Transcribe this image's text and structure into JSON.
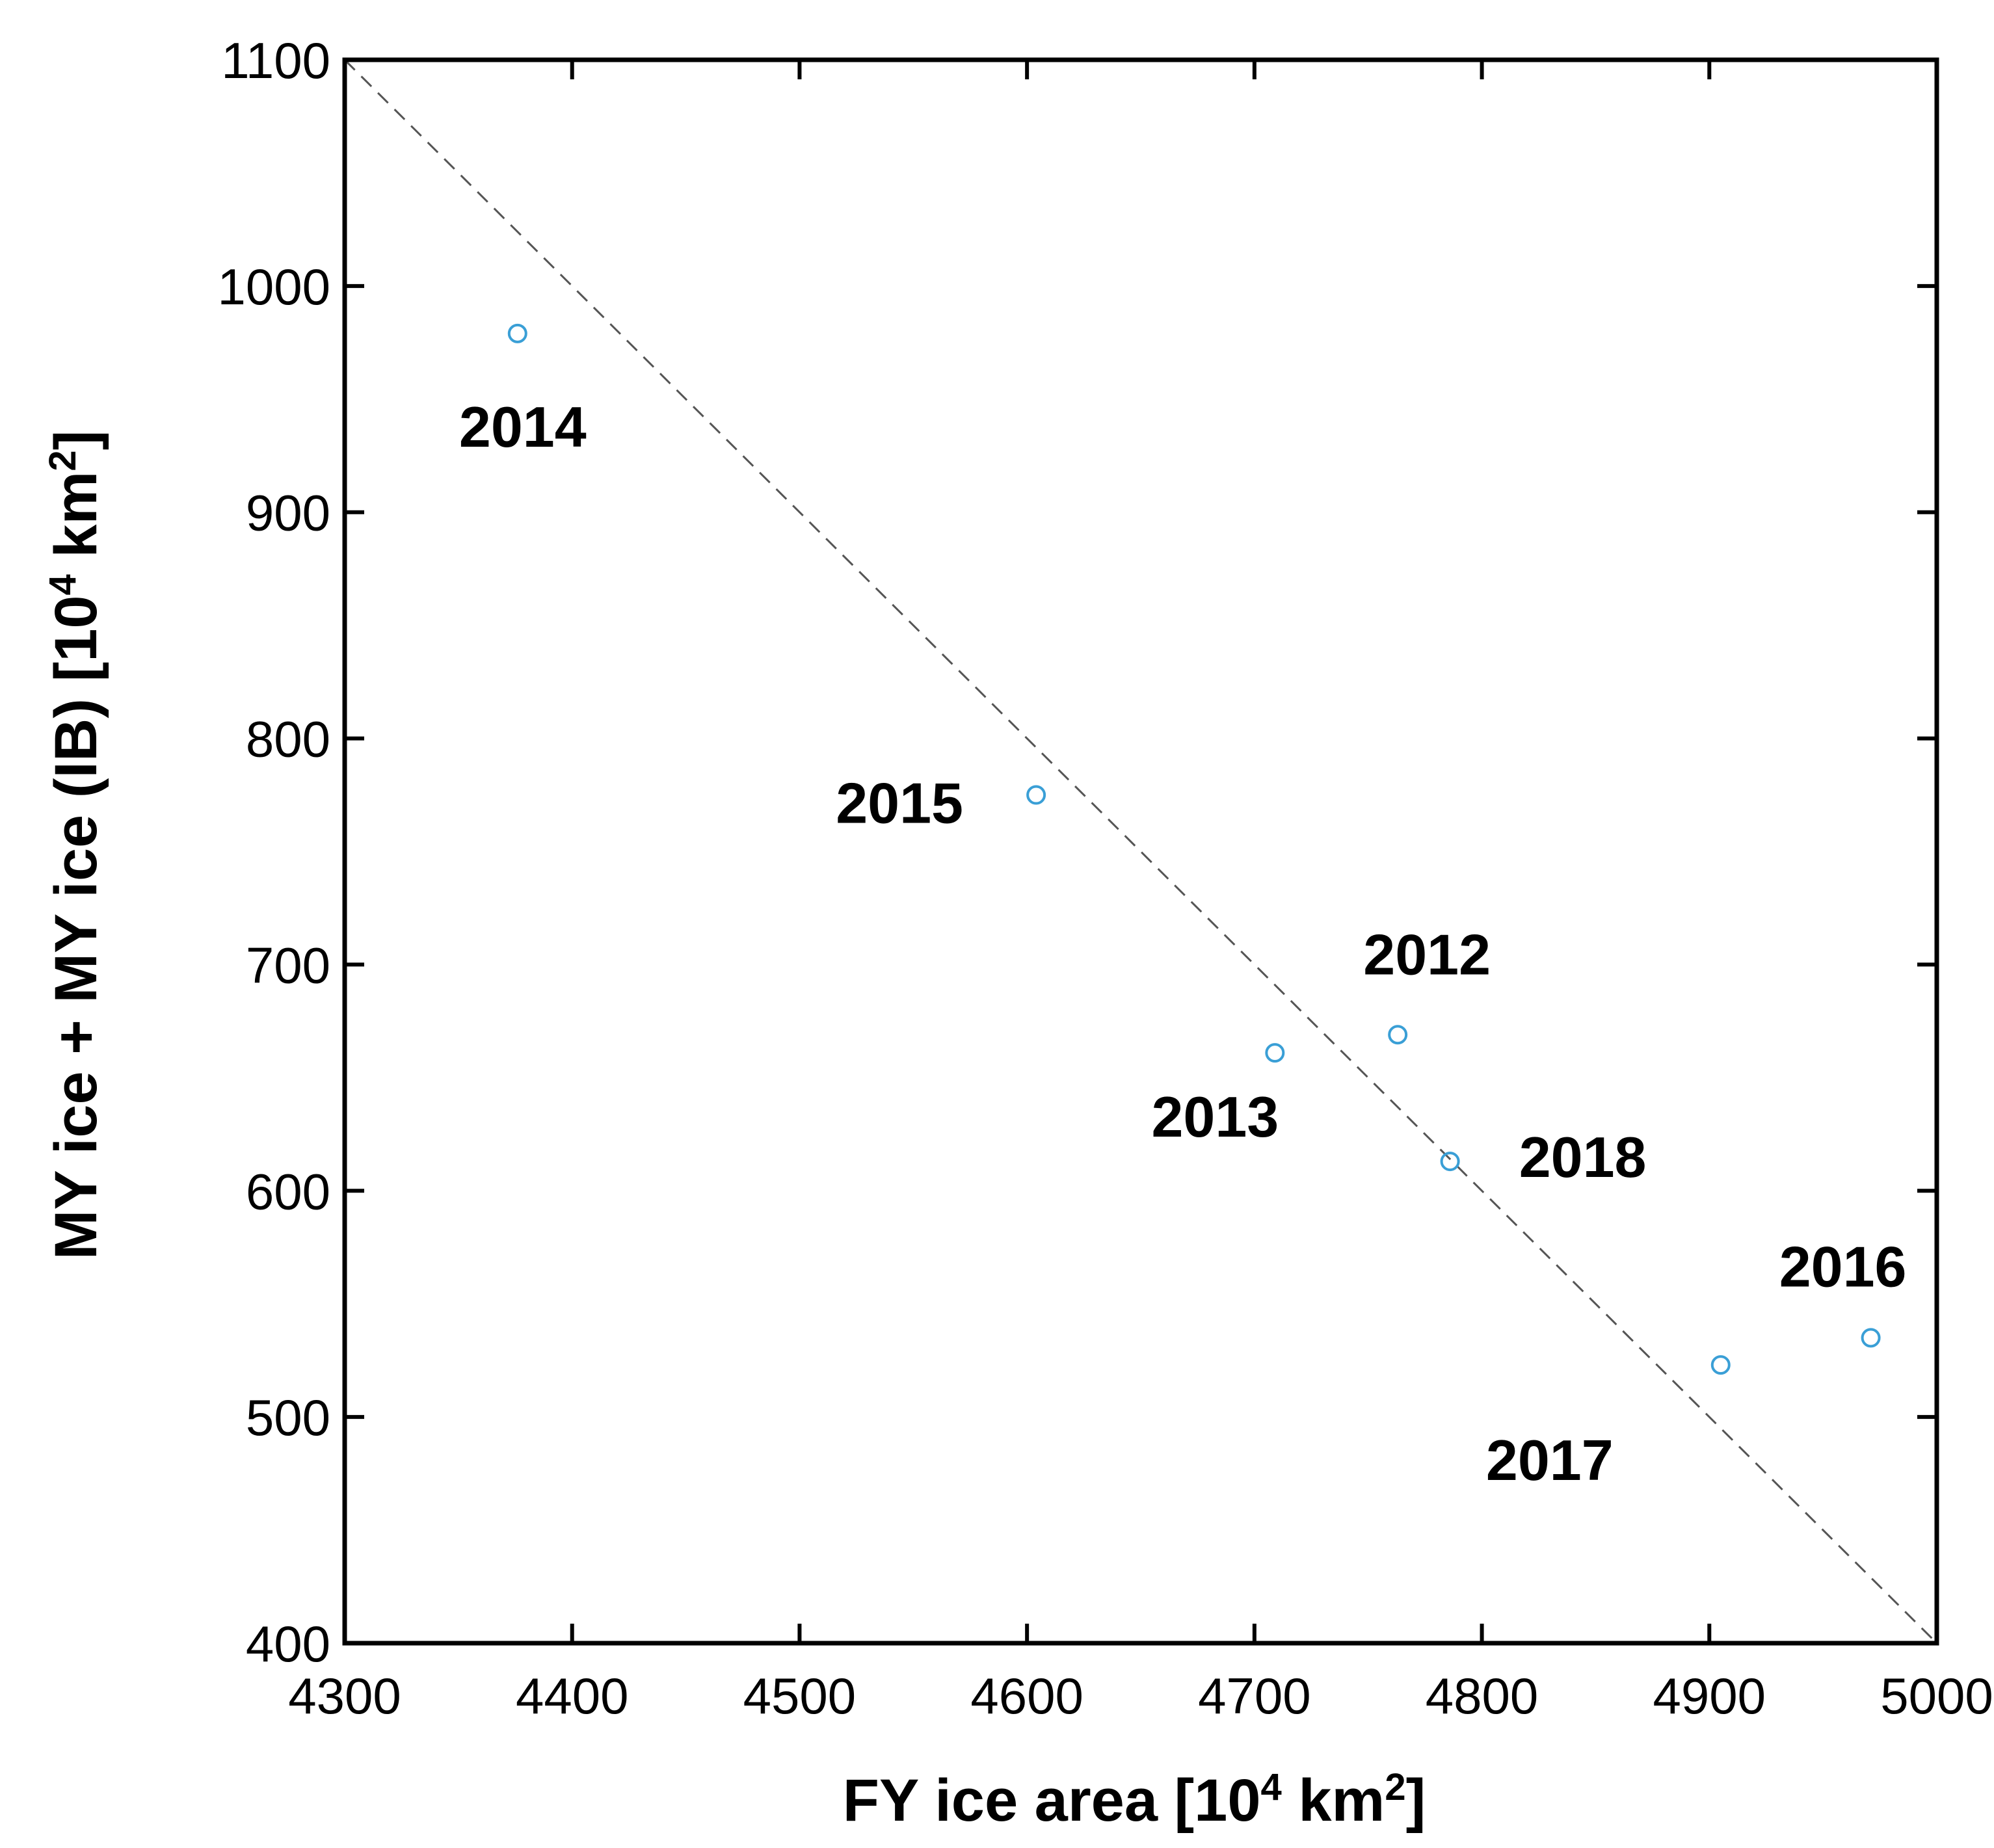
{
  "chart_data": {
    "type": "scatter",
    "title": "",
    "xlabel": {
      "prefix": "FY ice area [10",
      "sup": "4",
      "middle": " km",
      "sup2": "2",
      "suffix": "]"
    },
    "ylabel": {
      "prefix": "MY ice + MY ice (IB) [10",
      "sup": "4",
      "middle": " km",
      "sup2": "2",
      "suffix": "]"
    },
    "xlim": [
      4300,
      5000
    ],
    "ylim": [
      400,
      1100
    ],
    "xticks": [
      4300,
      4400,
      4500,
      4600,
      4700,
      4800,
      4900,
      5000
    ],
    "yticks": [
      400,
      500,
      600,
      700,
      800,
      900,
      1000,
      1100
    ],
    "grid": false,
    "marker": "open circle",
    "marker_color": "#3a9fd6",
    "points": [
      {
        "label": "2012",
        "x": 4763,
        "y": 669
      },
      {
        "label": "2013",
        "x": 4709,
        "y": 661
      },
      {
        "label": "2014",
        "x": 4376,
        "y": 979
      },
      {
        "label": "2015",
        "x": 4604,
        "y": 775
      },
      {
        "label": "2016",
        "x": 4971,
        "y": 535
      },
      {
        "label": "2017",
        "x": 4905,
        "y": 523
      },
      {
        "label": "2018",
        "x": 4786,
        "y": 613
      }
    ],
    "reference_line": {
      "style": "dashed",
      "color": "#555555",
      "from": [
        4300,
        1100
      ],
      "to": [
        5000,
        400
      ]
    }
  }
}
